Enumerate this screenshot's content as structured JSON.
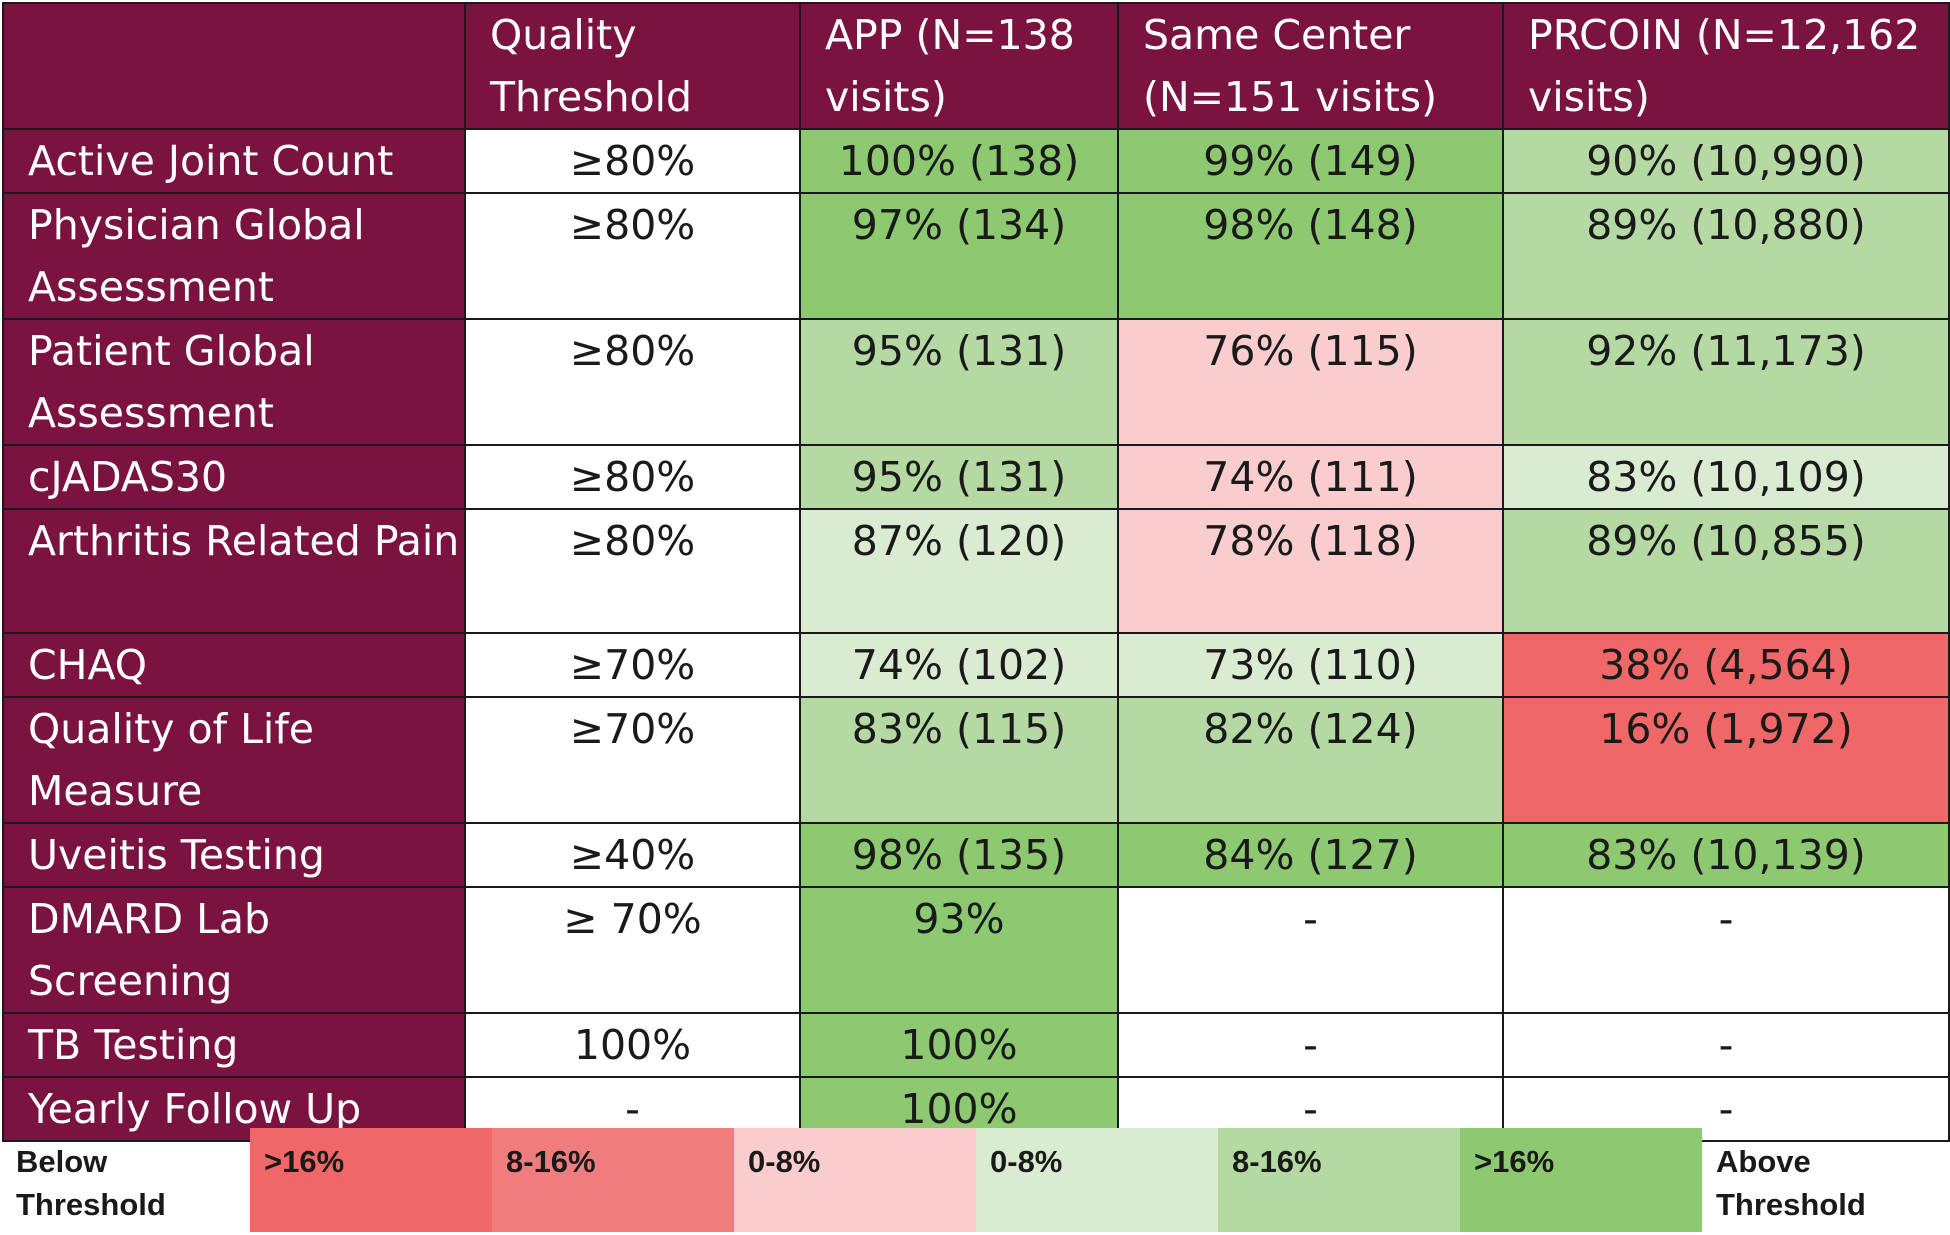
{
  "table": {
    "headers": [
      "",
      "Quality Threshold",
      "APP (N=138 visits)",
      "Same Center (N=151 visits)",
      "PRCOIN (N=12,162 visits)"
    ],
    "rows": [
      {
        "label": "Active Joint Count",
        "threshold": "≥80%",
        "app": "100% (138)",
        "same_center": "99% (149)",
        "prcoin": "90% (10,990)"
      },
      {
        "label": "Physician Global Assessment",
        "threshold": "≥80%",
        "app": "97% (134)",
        "same_center": "98% (148)",
        "prcoin": "89% (10,880)"
      },
      {
        "label": "Patient Global Assessment",
        "threshold": "≥80%",
        "app": "95% (131)",
        "same_center": "76% (115)",
        "prcoin": "92% (11,173)"
      },
      {
        "label": "cJADAS30",
        "threshold": "≥80%",
        "app": "95% (131)",
        "same_center": "74% (111)",
        "prcoin": "83% (10,109)"
      },
      {
        "label": "Arthritis Related Pain",
        "threshold": "≥80%",
        "app": "87% (120)",
        "same_center": "78% (118)",
        "prcoin": "89% (10,855)"
      },
      {
        "label": "CHAQ",
        "threshold": "≥70%",
        "app": "74% (102)",
        "same_center": "73% (110)",
        "prcoin": "38% (4,564)"
      },
      {
        "label": "Quality of Life Measure",
        "threshold": "≥70%",
        "app": "83% (115)",
        "same_center": "82% (124)",
        "prcoin": "16% (1,972)"
      },
      {
        "label": "Uveitis Testing",
        "threshold": "≥40%",
        "app": "98% (135)",
        "same_center": "84% (127)",
        "prcoin": "83% (10,139)"
      },
      {
        "label": "DMARD Lab Screening",
        "threshold": "≥ 70%",
        "app": "93%",
        "same_center": "-",
        "prcoin": "-"
      },
      {
        "label": "TB Testing",
        "threshold": "100%",
        "app": "100%",
        "same_center": "-",
        "prcoin": "-"
      },
      {
        "label": "Yearly Follow Up",
        "threshold": "-",
        "app": "100%",
        "same_center": "-",
        "prcoin": "-"
      }
    ]
  },
  "legend": {
    "left_label": "Below Threshold",
    "right_label": "Above Threshold",
    "bins": [
      {
        "label": ">16%",
        "color": "#ef6767"
      },
      {
        "label": "8-16%",
        "color": "#f07d7d"
      },
      {
        "label": "0-8%",
        "color": "#f9cdcd"
      },
      {
        "label": "0-8%",
        "color": "#d9ecd1"
      },
      {
        "label": "8-16%",
        "color": "#b5d9a2"
      },
      {
        "label": ">16%",
        "color": "#8dc971"
      }
    ]
  },
  "colors": {
    "header_bg": "#7b1340",
    "header_text": "#ffffff"
  }
}
